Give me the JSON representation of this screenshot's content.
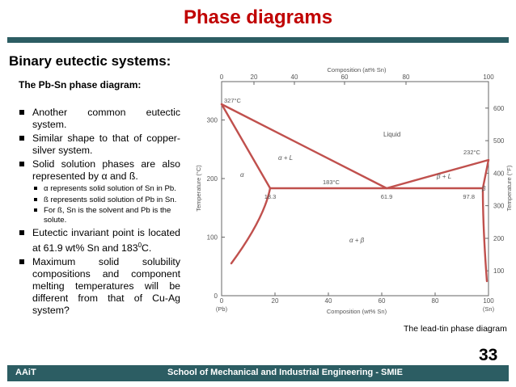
{
  "title": "Phase diagrams",
  "section_heading": "Binary eutectic systems:",
  "subheading": "The Pb-Sn phase diagram:",
  "bullets": [
    "Another common eutectic system.",
    "Similar shape to that of copper-silver system.",
    "Solid solution phases are also represented by α and ß.",
    "Eutectic invariant point is located at 61.9 wt% Sn and 183",
    "Maximum solid solubility compositions and component melting temperatures will be different from that of Cu-Ag system?"
  ],
  "bullet4_sup": "0",
  "bullet4_tail": "C.",
  "sub_bullets": [
    "α represents solid solution of Sn in Pb.",
    "ß represents solid solution of Pb in Sn.",
    "For ß, Sn is the solvent and Pb is the solute."
  ],
  "diagram": {
    "top_axis_title": "Composition (at% Sn)",
    "top_ticks": [
      "0",
      "20",
      "40",
      "60",
      "80",
      "100"
    ],
    "bottom_axis_title": "Composition (wt% Sn)",
    "bottom_ticks": [
      "0",
      "20",
      "40",
      "60",
      "80",
      "100"
    ],
    "bottom_end_left": "(Pb)",
    "bottom_end_right": "(Sn)",
    "left_axis_title": "Temperature (°C)",
    "left_ticks": [
      "0",
      "100",
      "200",
      "300"
    ],
    "right_axis_title": "Temperature (°F)",
    "right_ticks": [
      "100",
      "200",
      "300",
      "400",
      "500",
      "600"
    ],
    "labels": {
      "pb_melt": "327°C",
      "sn_melt": "232°C",
      "eutectic_temp": "183°C",
      "liquid": "Liquid",
      "alpha_liquid": "α + L",
      "beta_liquid": "β + L",
      "alpha": "α",
      "beta": "β",
      "alpha_beta": "α + β",
      "alpha_limit": "18.3",
      "eutectic_comp": "61.9",
      "beta_limit": "97.8"
    },
    "line_color": "#c0504d",
    "axis_color": "#666666"
  },
  "caption": "The lead-tin phase diagram",
  "page_number": "33",
  "footer": {
    "left": "AAiT",
    "center": "School of Mechanical and Industrial Engineering - SMIE"
  },
  "colors": {
    "title": "#c00000",
    "band": "#2c5d63"
  }
}
